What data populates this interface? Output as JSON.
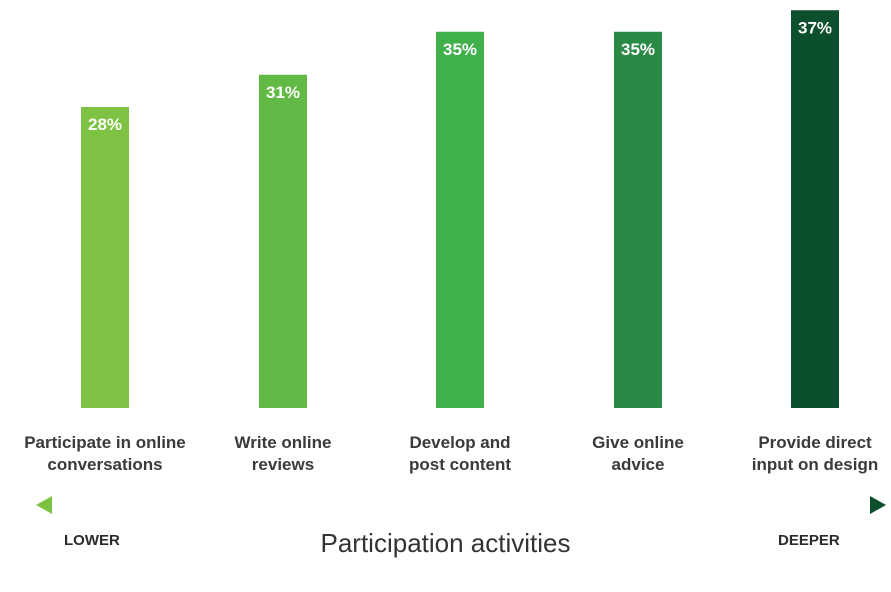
{
  "chart_data": {
    "type": "bar",
    "categories": [
      "Participate in online\nconversations",
      "Write online\nreviews",
      "Develop and\npost content",
      "Give online\nadvice",
      "Provide direct\ninput on design"
    ],
    "values": [
      28,
      31,
      35,
      35,
      37
    ],
    "value_labels": [
      "28%",
      "31%",
      "35%",
      "35%",
      "37%"
    ],
    "colors": [
      "#7dc242",
      "#62b946",
      "#40b04a",
      "#2a8a45",
      "#0b4f2c"
    ],
    "x_label": "Participation activities",
    "annotations": [
      "LOWER",
      "DEEPER"
    ]
  }
}
